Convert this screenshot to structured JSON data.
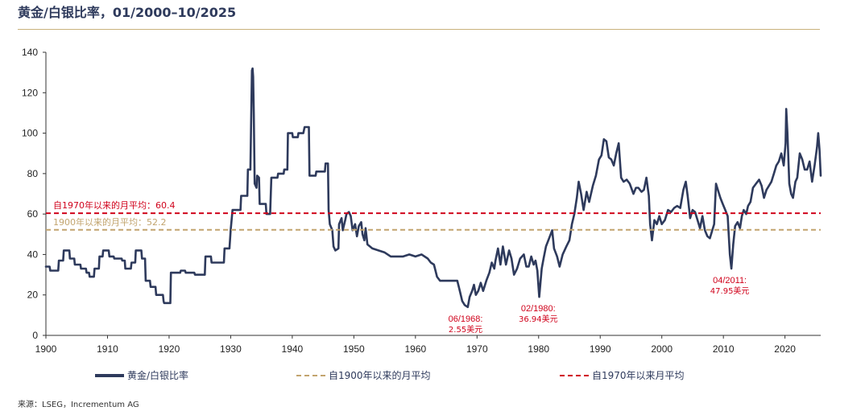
{
  "chart_data": {
    "type": "line",
    "title": "黄金/白银比率，01/2000–10/2025",
    "xlabel": "",
    "ylabel": "",
    "xlim": [
      1900,
      2025.8
    ],
    "ylim": [
      0,
      140
    ],
    "x_ticks": [
      1900,
      1910,
      1920,
      1930,
      1940,
      1950,
      1960,
      1970,
      1980,
      1990,
      2000,
      2010,
      2020
    ],
    "y_ticks": [
      0,
      20,
      40,
      60,
      80,
      100,
      120,
      140
    ],
    "series": [
      {
        "name": "黄金/白银比率",
        "color": "#2e3a5c",
        "points": [
          [
            1900,
            34
          ],
          [
            1900.6,
            34
          ],
          [
            1900.7,
            32
          ],
          [
            1902,
            32
          ],
          [
            1902.1,
            37
          ],
          [
            1902.8,
            37
          ],
          [
            1902.9,
            42
          ],
          [
            1903.8,
            42
          ],
          [
            1903.9,
            38
          ],
          [
            1904.6,
            38
          ],
          [
            1904.7,
            35
          ],
          [
            1905.6,
            35
          ],
          [
            1905.7,
            33
          ],
          [
            1906.5,
            33
          ],
          [
            1906.6,
            31
          ],
          [
            1907,
            31
          ],
          [
            1907.1,
            29
          ],
          [
            1907.8,
            29
          ],
          [
            1907.9,
            33
          ],
          [
            1908.6,
            33
          ],
          [
            1908.7,
            39
          ],
          [
            1909.2,
            39
          ],
          [
            1909.3,
            42
          ],
          [
            1910.2,
            42
          ],
          [
            1910.3,
            39
          ],
          [
            1911,
            39
          ],
          [
            1911.1,
            38
          ],
          [
            1912.3,
            38
          ],
          [
            1912.4,
            37
          ],
          [
            1912.8,
            37
          ],
          [
            1912.9,
            33
          ],
          [
            1913.8,
            33
          ],
          [
            1913.9,
            36
          ],
          [
            1914.5,
            36
          ],
          [
            1914.6,
            42
          ],
          [
            1915.5,
            42
          ],
          [
            1915.6,
            38
          ],
          [
            1916.1,
            38
          ],
          [
            1916.2,
            27
          ],
          [
            1916.9,
            27
          ],
          [
            1917,
            24
          ],
          [
            1917.8,
            24
          ],
          [
            1917.9,
            20
          ],
          [
            1919,
            20
          ],
          [
            1919.1,
            17
          ],
          [
            1919.2,
            16
          ],
          [
            1920.2,
            16
          ],
          [
            1920.3,
            31
          ],
          [
            1921.8,
            31
          ],
          [
            1921.9,
            32
          ],
          [
            1922.6,
            32
          ],
          [
            1922.7,
            31
          ],
          [
            1924.1,
            31
          ],
          [
            1924.2,
            30
          ],
          [
            1925.8,
            30
          ],
          [
            1925.9,
            39
          ],
          [
            1926.8,
            39
          ],
          [
            1926.9,
            36
          ],
          [
            1928.9,
            36
          ],
          [
            1929,
            43
          ],
          [
            1929.8,
            43
          ],
          [
            1930,
            52
          ],
          [
            1930.3,
            62
          ],
          [
            1931.6,
            62
          ],
          [
            1931.7,
            69
          ],
          [
            1932.7,
            69
          ],
          [
            1932.8,
            82
          ],
          [
            1933.2,
            82
          ],
          [
            1933.3,
            100
          ],
          [
            1933.45,
            131
          ],
          [
            1933.55,
            132
          ],
          [
            1933.65,
            128
          ],
          [
            1933.75,
            110
          ],
          [
            1933.9,
            75
          ],
          [
            1934.2,
            73
          ],
          [
            1934.3,
            79
          ],
          [
            1934.6,
            78
          ],
          [
            1934.7,
            65
          ],
          [
            1935.7,
            65
          ],
          [
            1935.8,
            60
          ],
          [
            1936.4,
            60
          ],
          [
            1936.6,
            78
          ],
          [
            1937.6,
            78
          ],
          [
            1937.7,
            80
          ],
          [
            1938.6,
            80
          ],
          [
            1938.7,
            82
          ],
          [
            1939.2,
            82
          ],
          [
            1939.3,
            100
          ],
          [
            1940,
            100
          ],
          [
            1940.1,
            98
          ],
          [
            1940.9,
            98
          ],
          [
            1941,
            100
          ],
          [
            1941.8,
            100
          ],
          [
            1942,
            103
          ],
          [
            1942.7,
            103
          ],
          [
            1942.8,
            79
          ],
          [
            1943.8,
            79
          ],
          [
            1943.9,
            81
          ],
          [
            1945.3,
            81
          ],
          [
            1945.4,
            85
          ],
          [
            1945.8,
            85
          ],
          [
            1945.9,
            62
          ],
          [
            1946.1,
            55
          ],
          [
            1946.5,
            52
          ],
          [
            1946.7,
            44
          ],
          [
            1947,
            42
          ],
          [
            1947.5,
            43
          ],
          [
            1947.6,
            55
          ],
          [
            1948,
            58
          ],
          [
            1948.2,
            52
          ],
          [
            1948.6,
            57
          ],
          [
            1948.8,
            60
          ],
          [
            1949.2,
            61
          ],
          [
            1949.5,
            59
          ],
          [
            1949.8,
            52
          ],
          [
            1950.2,
            55
          ],
          [
            1950.5,
            49
          ],
          [
            1950.8,
            54
          ],
          [
            1951.2,
            56
          ],
          [
            1951.4,
            50
          ],
          [
            1951.7,
            47
          ],
          [
            1951.9,
            53
          ],
          [
            1952.2,
            45
          ],
          [
            1953,
            43
          ],
          [
            1954,
            42
          ],
          [
            1955,
            41
          ],
          [
            1956,
            39
          ],
          [
            1957,
            39
          ],
          [
            1958,
            39
          ],
          [
            1959,
            40
          ],
          [
            1960,
            39
          ],
          [
            1961,
            40
          ],
          [
            1962,
            38
          ],
          [
            1962.5,
            36
          ],
          [
            1963,
            35
          ],
          [
            1963.5,
            29
          ],
          [
            1964,
            27
          ],
          [
            1965,
            27
          ],
          [
            1966,
            27
          ],
          [
            1966.8,
            27
          ],
          [
            1967.2,
            22
          ],
          [
            1967.6,
            17
          ],
          [
            1968,
            15
          ],
          [
            1968.5,
            14
          ],
          [
            1968.8,
            19
          ],
          [
            1969.2,
            22
          ],
          [
            1969.5,
            25
          ],
          [
            1969.8,
            20
          ],
          [
            1970.2,
            22
          ],
          [
            1970.6,
            26
          ],
          [
            1971,
            22
          ],
          [
            1971.5,
            27
          ],
          [
            1972,
            31
          ],
          [
            1972.4,
            36
          ],
          [
            1972.8,
            33
          ],
          [
            1973,
            37
          ],
          [
            1973.4,
            43
          ],
          [
            1973.8,
            35
          ],
          [
            1974.2,
            44
          ],
          [
            1974.7,
            35
          ],
          [
            1975.2,
            42
          ],
          [
            1975.6,
            38
          ],
          [
            1976,
            30
          ],
          [
            1976.5,
            33
          ],
          [
            1977,
            38
          ],
          [
            1977.6,
            40
          ],
          [
            1978,
            34
          ],
          [
            1978.4,
            34
          ],
          [
            1978.8,
            39
          ],
          [
            1979.2,
            35
          ],
          [
            1979.5,
            37
          ],
          [
            1979.8,
            32
          ],
          [
            1980.1,
            19
          ],
          [
            1980.5,
            33
          ],
          [
            1980.8,
            38
          ],
          [
            1981.2,
            44
          ],
          [
            1981.7,
            48
          ],
          [
            1982.2,
            52
          ],
          [
            1982.5,
            43
          ],
          [
            1983,
            39
          ],
          [
            1983.4,
            34
          ],
          [
            1983.9,
            40
          ],
          [
            1984.5,
            44
          ],
          [
            1985,
            47
          ],
          [
            1985.4,
            55
          ],
          [
            1985.8,
            60
          ],
          [
            1986.2,
            68
          ],
          [
            1986.5,
            76
          ],
          [
            1986.9,
            70
          ],
          [
            1987.3,
            62
          ],
          [
            1987.8,
            71
          ],
          [
            1988.2,
            66
          ],
          [
            1988.8,
            74
          ],
          [
            1989.3,
            79
          ],
          [
            1989.8,
            87
          ],
          [
            1990.2,
            89
          ],
          [
            1990.6,
            97
          ],
          [
            1991,
            96
          ],
          [
            1991.4,
            88
          ],
          [
            1991.8,
            87
          ],
          [
            1992.2,
            84
          ],
          [
            1992.6,
            90
          ],
          [
            1993,
            95
          ],
          [
            1993.4,
            78
          ],
          [
            1993.8,
            76
          ],
          [
            1994.3,
            77
          ],
          [
            1994.8,
            75
          ],
          [
            1995.4,
            70
          ],
          [
            1995.8,
            73
          ],
          [
            1996.2,
            73
          ],
          [
            1996.7,
            71
          ],
          [
            1997.1,
            72
          ],
          [
            1997.5,
            78
          ],
          [
            1997.9,
            69
          ],
          [
            1998.1,
            55
          ],
          [
            1998.4,
            47
          ],
          [
            1998.8,
            57
          ],
          [
            1999.2,
            55
          ],
          [
            1999.6,
            59
          ],
          [
            2000,
            55
          ],
          [
            2000.5,
            57
          ],
          [
            2001,
            62
          ],
          [
            2001.5,
            61
          ],
          [
            2002,
            63
          ],
          [
            2002.5,
            64
          ],
          [
            2003,
            63
          ],
          [
            2003.5,
            72
          ],
          [
            2003.9,
            76
          ],
          [
            2004.2,
            69
          ],
          [
            2004.6,
            58
          ],
          [
            2005,
            62
          ],
          [
            2005.4,
            61
          ],
          [
            2005.8,
            57
          ],
          [
            2006.2,
            53
          ],
          [
            2006.6,
            59
          ],
          [
            2007,
            52
          ],
          [
            2007.4,
            49
          ],
          [
            2007.8,
            48
          ],
          [
            2008.2,
            52
          ],
          [
            2008.5,
            55
          ],
          [
            2008.8,
            75
          ],
          [
            2009.1,
            72
          ],
          [
            2009.5,
            68
          ],
          [
            2009.9,
            65
          ],
          [
            2010.3,
            62
          ],
          [
            2010.7,
            59
          ],
          [
            2011.05,
            40
          ],
          [
            2011.3,
            33
          ],
          [
            2011.6,
            45
          ],
          [
            2011.9,
            54
          ],
          [
            2012.3,
            56
          ],
          [
            2012.7,
            53
          ],
          [
            2013,
            59
          ],
          [
            2013.3,
            62
          ],
          [
            2013.7,
            60
          ],
          [
            2014,
            64
          ],
          [
            2014.4,
            66
          ],
          [
            2014.8,
            73
          ],
          [
            2015.3,
            75
          ],
          [
            2015.8,
            77
          ],
          [
            2016.2,
            74
          ],
          [
            2016.6,
            68
          ],
          [
            2017,
            72
          ],
          [
            2017.4,
            74
          ],
          [
            2017.8,
            76
          ],
          [
            2018.2,
            80
          ],
          [
            2018.6,
            84
          ],
          [
            2019,
            86
          ],
          [
            2019.4,
            90
          ],
          [
            2019.8,
            84
          ],
          [
            2020.1,
            95
          ],
          [
            2020.2,
            112
          ],
          [
            2020.4,
            100
          ],
          [
            2020.7,
            75
          ],
          [
            2021,
            70
          ],
          [
            2021.3,
            68
          ],
          [
            2021.7,
            76
          ],
          [
            2022,
            78
          ],
          [
            2022.4,
            90
          ],
          [
            2022.8,
            87
          ],
          [
            2023.2,
            82
          ],
          [
            2023.6,
            82
          ],
          [
            2024,
            86
          ],
          [
            2024.4,
            76
          ],
          [
            2024.8,
            84
          ],
          [
            2025.2,
            93
          ],
          [
            2025.4,
            100
          ],
          [
            2025.6,
            92
          ],
          [
            2025.8,
            79
          ]
        ]
      },
      {
        "name": "自1900年以来的月平均",
        "color": "#c2a46e",
        "value": 52.2
      },
      {
        "name": "自1970年以来月平均",
        "color": "#d0021b",
        "value": 60.4
      }
    ],
    "mean_labels": [
      {
        "text": "自1970年以来的月平均：60.4",
        "value": 60.4,
        "color": "#d0021b"
      },
      {
        "text": "1900年以来的月平均：52.2",
        "value": 52.2,
        "color": "#c2a46e"
      }
    ],
    "annotations": [
      {
        "line1": "06/1968:",
        "line2": "2.55美元",
        "x": 1968.4,
        "y": 14
      },
      {
        "line1": "02/1980:",
        "line2": "36.94美元",
        "x": 1980.2,
        "y": 19
      },
      {
        "line1": "04/2011:",
        "line2": "47.95美元",
        "x": 2011.3,
        "y": 33
      }
    ]
  },
  "legend": {
    "ratio": "黄金/白银比率",
    "mean1900": "自1900年以来的月平均",
    "mean1970": "自1970年以来月平均"
  },
  "source": "来源：LSEG，Incrementum AG"
}
